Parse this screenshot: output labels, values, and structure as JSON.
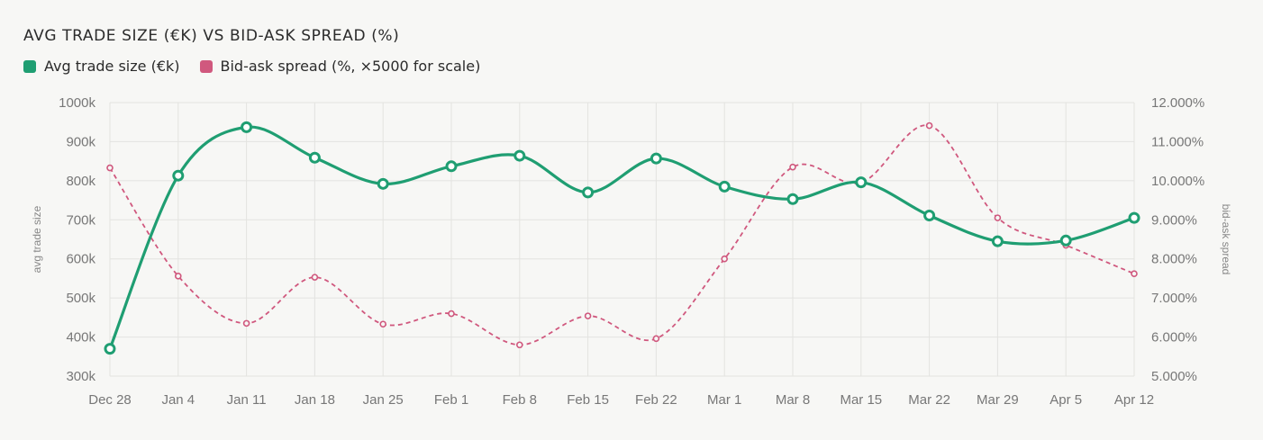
{
  "chart_data": {
    "type": "line",
    "title": "AVG TRADE SIZE (€K) VS BID-ASK SPREAD (%)",
    "legend_position": "top-left",
    "grid": true,
    "x": [
      "Dec 28",
      "Jan 4",
      "Jan 11",
      "Jan 18",
      "Jan 25",
      "Feb 1",
      "Feb 8",
      "Feb 15",
      "Feb 22",
      "Mar 1",
      "Mar 8",
      "Mar 15",
      "Mar 22",
      "Mar 29",
      "Apr 5",
      "Apr 12"
    ],
    "y_left": {
      "label": "avg trade size",
      "ylim": [
        300,
        1000
      ],
      "ticks": [
        "300k",
        "400k",
        "500k",
        "600k",
        "700k",
        "800k",
        "900k",
        "1000k"
      ]
    },
    "y_right": {
      "label": "bid-ask spread",
      "ylim": [
        5,
        12
      ],
      "ticks": [
        "5.000%",
        "6.000%",
        "7.000%",
        "8.000%",
        "9.000%",
        "10.000%",
        "11.000%",
        "12.000%"
      ]
    },
    "series": [
      {
        "name": "Avg trade size (€k)",
        "axis": "left",
        "color": "#1f9e72",
        "style": "solid",
        "values": [
          370,
          813,
          937,
          859,
          792,
          837,
          864,
          770,
          857,
          785,
          753,
          796,
          711,
          645,
          647,
          705
        ]
      },
      {
        "name": "Bid-ask spread (%, ×5000 for scale)",
        "axis": "right",
        "color": "#d0587e",
        "style": "dashed",
        "values": [
          10.33,
          7.56,
          6.35,
          7.53,
          6.33,
          6.6,
          5.8,
          6.54,
          5.96,
          8.0,
          10.35,
          9.95,
          11.41,
          9.05,
          8.35,
          7.62
        ]
      }
    ]
  }
}
